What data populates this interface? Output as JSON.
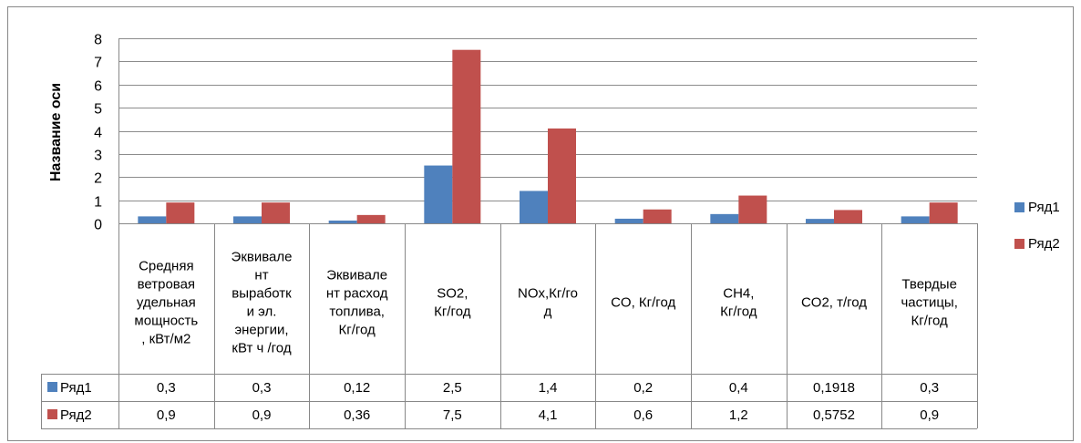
{
  "chart_data": {
    "type": "bar",
    "title": "",
    "xlabel": "",
    "ylabel": "Название оси",
    "ylim": [
      0,
      8
    ],
    "yticks": [
      0,
      1,
      2,
      3,
      4,
      5,
      6,
      7,
      8
    ],
    "grid": true,
    "legend_position": "right",
    "categories": [
      "Средняя ветровая удельная мощность, кВт/м2",
      "Эквивалент выработки эл. энергии, кВт ч /год",
      "Эквивалент расход топлива, Кг/год",
      "SO2, Кг/год",
      "NOx,Кг/год",
      "CO, Кг/год",
      "CH4, Кг/год",
      "CO2, т/год",
      "Твердые частицы, Кг/год"
    ],
    "category_lines": [
      [
        "Средняя",
        "ветровая",
        "удельная",
        "мощность",
        ", кВт/м2"
      ],
      [
        "Эквивале",
        "нт",
        "выработк",
        "и эл.",
        "энергии,",
        "кВт ч /год"
      ],
      [
        "Эквивале",
        "нт расход",
        "топлива,",
        "Кг/год"
      ],
      [
        "SO2,",
        "Кг/год"
      ],
      [
        "NOx,Кг/го",
        "д"
      ],
      [
        "CO, Кг/год"
      ],
      [
        "CH4,",
        "Кг/год"
      ],
      [
        "CO2, т/год"
      ],
      [
        "Твердые",
        "частицы,",
        "Кг/год"
      ]
    ],
    "series": [
      {
        "name": "Ряд1",
        "color": "#4f81bd",
        "values": [
          0.3,
          0.3,
          0.12,
          2.5,
          1.4,
          0.2,
          0.4,
          0.1918,
          0.3
        ],
        "labels": [
          "0,3",
          "0,3",
          "0,12",
          "2,5",
          "1,4",
          "0,2",
          "0,4",
          "0,1918",
          "0,3"
        ]
      },
      {
        "name": "Ряд2",
        "color": "#c0504d",
        "values": [
          0.9,
          0.9,
          0.36,
          7.5,
          4.1,
          0.6,
          1.2,
          0.5752,
          0.9
        ],
        "labels": [
          "0,9",
          "0,9",
          "0,36",
          "7,5",
          "4,1",
          "0,6",
          "1,2",
          "0,5752",
          "0,9"
        ]
      }
    ]
  }
}
